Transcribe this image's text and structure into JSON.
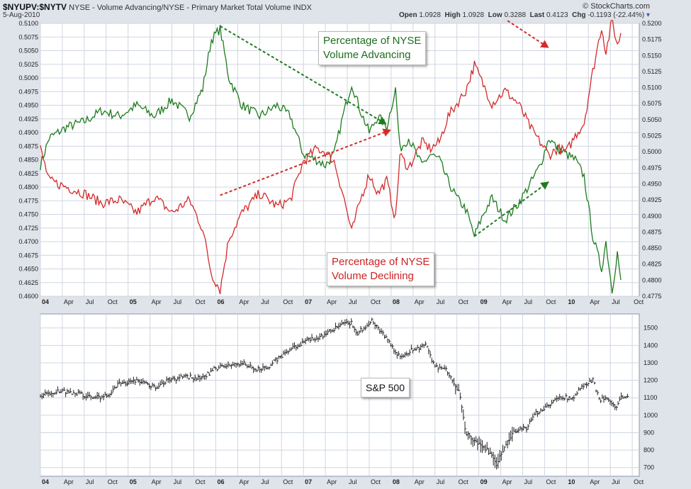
{
  "header": {
    "symbol": "$NYUPV:$NYTV",
    "description": "NYSE - Volume Advancing/NYSE - Primary Market Total Volume  INDX",
    "brand": "© StockCharts.com",
    "date": "5-Aug-2010",
    "open_label": "Open",
    "open": "1.0928",
    "high_label": "High",
    "high": "1.0928",
    "low_label": "Low",
    "low": "0.3288",
    "last_label": "Last",
    "last": "0.4123",
    "chg_label": "Chg",
    "chg": "-0.1193 (-22.44%)"
  },
  "annotations": {
    "advancing": [
      "Percentage of NYSE",
      "Volume Advancing"
    ],
    "declining": [
      "Percentage of NYSE",
      "Volume Declining"
    ],
    "sp500": "S&P 500"
  },
  "colors": {
    "advancing": "#1e7b1e",
    "declining": "#d42a2a",
    "bars": "#222222",
    "panel": "#ffffff",
    "grid": "#cfd5e0"
  },
  "chart_data": [
    {
      "type": "line",
      "title": "",
      "x_ticks": [
        "04",
        "Apr",
        "Jul",
        "Oct",
        "05",
        "Apr",
        "Jul",
        "Oct",
        "06",
        "Apr",
        "Jul",
        "Oct",
        "07",
        "Apr",
        "Jul",
        "Oct",
        "08",
        "Apr",
        "Jul",
        "Oct",
        "09",
        "Apr",
        "Jul",
        "Oct",
        "10",
        "Apr",
        "Jul",
        "Oct"
      ],
      "x_range": [
        2004.0,
        2010.83
      ],
      "left_axis": {
        "ylim": [
          0.46,
          0.51
        ],
        "ticks": [
          "0.5100",
          "0.5075",
          "0.5050",
          "0.5025",
          "0.5000",
          "0.4975",
          "0.4950",
          "0.4925",
          "0.4900",
          "0.4875",
          "0.4850",
          "0.4825",
          "0.4800",
          "0.4775",
          "0.4750",
          "0.4725",
          "0.4700",
          "0.4675",
          "0.4650",
          "0.4625",
          "0.4600"
        ]
      },
      "right_axis": {
        "ylim": [
          0.4775,
          0.52
        ],
        "ticks": [
          "0.5200",
          "0.5175",
          "0.5150",
          "0.5125",
          "0.5100",
          "0.5075",
          "0.5050",
          "0.5025",
          "0.5000",
          "0.4975",
          "0.4950",
          "0.4925",
          "0.4900",
          "0.4875",
          "0.4850",
          "0.4825",
          "0.4800",
          "0.4775"
        ]
      },
      "series": [
        {
          "color": "green",
          "axis": "left",
          "points": [
            [
              2004.0,
              0.484
            ],
            [
              2004.1,
              0.489
            ],
            [
              2004.3,
              0.491
            ],
            [
              2004.5,
              0.492
            ],
            [
              2004.7,
              0.494
            ],
            [
              2004.9,
              0.493
            ],
            [
              2005.1,
              0.495
            ],
            [
              2005.3,
              0.493
            ],
            [
              2005.5,
              0.496
            ],
            [
              2005.7,
              0.493
            ],
            [
              2005.85,
              0.498
            ],
            [
              2005.95,
              0.507
            ],
            [
              2006.05,
              0.509
            ],
            [
              2006.15,
              0.5
            ],
            [
              2006.3,
              0.495
            ],
            [
              2006.5,
              0.493
            ],
            [
              2006.7,
              0.495
            ],
            [
              2006.85,
              0.493
            ],
            [
              2007.0,
              0.486
            ],
            [
              2007.15,
              0.485
            ],
            [
              2007.25,
              0.484
            ],
            [
              2007.35,
              0.486
            ],
            [
              2007.45,
              0.493
            ],
            [
              2007.55,
              0.499
            ],
            [
              2007.65,
              0.494
            ],
            [
              2007.75,
              0.49
            ],
            [
              2007.85,
              0.493
            ],
            [
              2007.95,
              0.491
            ],
            [
              2008.05,
              0.498
            ],
            [
              2008.1,
              0.487
            ],
            [
              2008.2,
              0.489
            ],
            [
              2008.35,
              0.484
            ],
            [
              2008.45,
              0.486
            ],
            [
              2008.55,
              0.485
            ],
            [
              2008.65,
              0.481
            ],
            [
              2008.75,
              0.478
            ],
            [
              2008.85,
              0.476
            ],
            [
              2008.95,
              0.471
            ],
            [
              2009.05,
              0.475
            ],
            [
              2009.15,
              0.478
            ],
            [
              2009.3,
              0.474
            ],
            [
              2009.45,
              0.477
            ],
            [
              2009.6,
              0.481
            ],
            [
              2009.7,
              0.484
            ],
            [
              2009.8,
              0.489
            ],
            [
              2009.9,
              0.487
            ],
            [
              2010.0,
              0.486
            ],
            [
              2010.1,
              0.485
            ],
            [
              2010.2,
              0.482
            ],
            [
              2010.3,
              0.471
            ],
            [
              2010.4,
              0.465
            ],
            [
              2010.45,
              0.47
            ],
            [
              2010.52,
              0.461
            ],
            [
              2010.58,
              0.468
            ],
            [
              2010.62,
              0.463
            ]
          ]
        },
        {
          "color": "red",
          "axis": "right",
          "points": [
            [
              2004.0,
              0.5005
            ],
            [
              2004.1,
              0.4955
            ],
            [
              2004.3,
              0.4945
            ],
            [
              2004.5,
              0.4935
            ],
            [
              2004.7,
              0.492
            ],
            [
              2004.9,
              0.4925
            ],
            [
              2005.1,
              0.4905
            ],
            [
              2005.3,
              0.493
            ],
            [
              2005.5,
              0.4905
            ],
            [
              2005.7,
              0.4925
            ],
            [
              2005.85,
              0.488
            ],
            [
              2005.95,
              0.481
            ],
            [
              2006.05,
              0.4785
            ],
            [
              2006.15,
              0.4865
            ],
            [
              2006.3,
              0.4905
            ],
            [
              2006.5,
              0.4935
            ],
            [
              2006.7,
              0.4915
            ],
            [
              2006.85,
              0.4925
            ],
            [
              2007.0,
              0.4985
            ],
            [
              2007.15,
              0.5005
            ],
            [
              2007.25,
              0.5
            ],
            [
              2007.35,
              0.4985
            ],
            [
              2007.45,
              0.4935
            ],
            [
              2007.55,
              0.4875
            ],
            [
              2007.65,
              0.4925
            ],
            [
              2007.75,
              0.4965
            ],
            [
              2007.85,
              0.4935
            ],
            [
              2007.95,
              0.4955
            ],
            [
              2008.05,
              0.4895
            ],
            [
              2008.1,
              0.4995
            ],
            [
              2008.2,
              0.4975
            ],
            [
              2008.35,
              0.5015
            ],
            [
              2008.45,
              0.5005
            ],
            [
              2008.55,
              0.5015
            ],
            [
              2008.65,
              0.5055
            ],
            [
              2008.75,
              0.5075
            ],
            [
              2008.85,
              0.5095
            ],
            [
              2008.95,
              0.5135
            ],
            [
              2009.05,
              0.5105
            ],
            [
              2009.15,
              0.5075
            ],
            [
              2009.3,
              0.5095
            ],
            [
              2009.45,
              0.5075
            ],
            [
              2009.6,
              0.5035
            ],
            [
              2009.7,
              0.5015
            ],
            [
              2009.8,
              0.4995
            ],
            [
              2009.9,
              0.5005
            ],
            [
              2010.0,
              0.5
            ],
            [
              2010.1,
              0.5025
            ],
            [
              2010.2,
              0.5045
            ],
            [
              2010.3,
              0.5125
            ],
            [
              2010.4,
              0.5195
            ],
            [
              2010.45,
              0.5155
            ],
            [
              2010.52,
              0.5205
            ],
            [
              2010.58,
              0.5165
            ],
            [
              2010.62,
              0.5185
            ]
          ]
        }
      ],
      "trendlines": [
        {
          "color": "green",
          "from": [
            2006.05,
            0.5095
          ],
          "to": [
            2007.95,
            0.4915
          ]
        },
        {
          "color": "green",
          "from": [
            2008.95,
            0.471
          ],
          "to": [
            2009.8,
            0.481
          ]
        },
        {
          "color": "red",
          "from": [
            2006.05,
            0.4785
          ],
          "to": [
            2008.0,
            0.4905
          ]
        },
        {
          "color": "red",
          "from": [
            2008.95,
            0.5145
          ],
          "to": [
            2009.8,
            0.5055
          ]
        }
      ]
    },
    {
      "type": "ohlc",
      "title": "S&P 500",
      "x_ticks": [
        "04",
        "Apr",
        "Jul",
        "Oct",
        "05",
        "Apr",
        "Jul",
        "Oct",
        "06",
        "Apr",
        "Jul",
        "Oct",
        "07",
        "Apr",
        "Jul",
        "Oct",
        "08",
        "Apr",
        "Jul",
        "Oct",
        "09",
        "Apr",
        "Jul",
        "Oct",
        "10",
        "Apr",
        "Jul",
        "Oct"
      ],
      "x_range": [
        2004.0,
        2010.83
      ],
      "ylim": [
        650,
        1580
      ],
      "y_ticks": [
        "1500",
        "1400",
        "1300",
        "1200",
        "1100",
        "1000",
        "900",
        "800",
        "700"
      ],
      "close_path": [
        [
          2004.0,
          1110
        ],
        [
          2004.2,
          1140
        ],
        [
          2004.4,
          1130
        ],
        [
          2004.6,
          1100
        ],
        [
          2004.75,
          1110
        ],
        [
          2004.9,
          1180
        ],
        [
          2005.1,
          1200
        ],
        [
          2005.3,
          1160
        ],
        [
          2005.5,
          1210
        ],
        [
          2005.7,
          1220
        ],
        [
          2005.85,
          1210
        ],
        [
          2006.0,
          1270
        ],
        [
          2006.3,
          1300
        ],
        [
          2006.45,
          1260
        ],
        [
          2006.6,
          1280
        ],
        [
          2006.8,
          1360
        ],
        [
          2007.0,
          1420
        ],
        [
          2007.15,
          1440
        ],
        [
          2007.3,
          1480
        ],
        [
          2007.45,
          1520
        ],
        [
          2007.55,
          1530
        ],
        [
          2007.6,
          1460
        ],
        [
          2007.78,
          1545
        ],
        [
          2007.9,
          1470
        ],
        [
          2008.0,
          1400
        ],
        [
          2008.1,
          1330
        ],
        [
          2008.25,
          1380
        ],
        [
          2008.4,
          1400
        ],
        [
          2008.5,
          1270
        ],
        [
          2008.6,
          1280
        ],
        [
          2008.7,
          1200
        ],
        [
          2008.78,
          1120
        ],
        [
          2008.85,
          900
        ],
        [
          2008.95,
          850
        ],
        [
          2009.1,
          800
        ],
        [
          2009.2,
          720
        ],
        [
          2009.3,
          820
        ],
        [
          2009.4,
          900
        ],
        [
          2009.55,
          930
        ],
        [
          2009.65,
          1010
        ],
        [
          2009.8,
          1060
        ],
        [
          2009.95,
          1110
        ],
        [
          2010.05,
          1090
        ],
        [
          2010.15,
          1150
        ],
        [
          2010.3,
          1200
        ],
        [
          2010.38,
          1090
        ],
        [
          2010.45,
          1100
        ],
        [
          2010.55,
          1040
        ],
        [
          2010.62,
          1100
        ],
        [
          2010.7,
          1120
        ]
      ]
    }
  ]
}
